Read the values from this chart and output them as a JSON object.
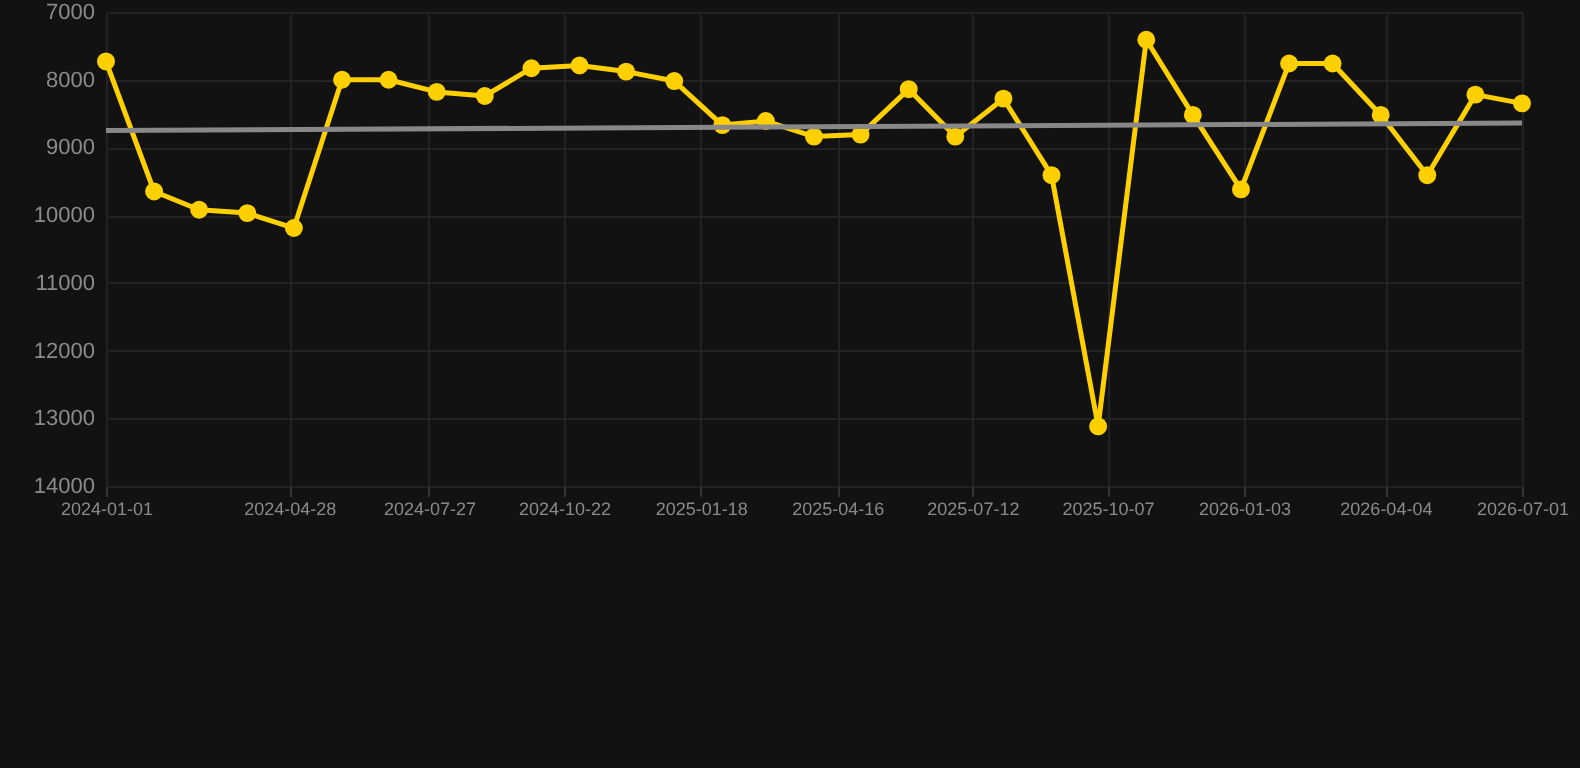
{
  "chart_data": {
    "type": "line",
    "marker": "circle",
    "grid": true,
    "x": [
      "2024-01-01",
      "2024-02-01",
      "2024-03-01",
      "2024-04-01",
      "2024-05-01",
      "2024-06-01",
      "2024-07-01",
      "2024-08-01",
      "2024-09-01",
      "2024-10-01",
      "2024-11-01",
      "2024-12-01",
      "2025-01-01",
      "2025-02-01",
      "2025-03-01",
      "2025-04-01",
      "2025-05-01",
      "2025-06-01",
      "2025-07-01",
      "2025-08-01",
      "2025-09-01",
      "2025-10-01",
      "2025-11-01",
      "2025-12-01",
      "2026-01-01",
      "2026-02-01",
      "2026-03-01",
      "2026-04-01",
      "2026-05-01",
      "2026-06-01",
      "2026-07-01"
    ],
    "series": [
      {
        "color": "#ffd000",
        "values": [
          7730,
          9650,
          9920,
          9970,
          10190,
          8000,
          8000,
          8180,
          8240,
          7830,
          7790,
          7880,
          8020,
          8670,
          8610,
          8840,
          8810,
          8140,
          8840,
          8280,
          9410,
          13120,
          7410,
          8520,
          9620,
          7760,
          7760,
          8520,
          9410,
          8220,
          8350
        ]
      },
      {
        "type": "line",
        "marker": "none",
        "color": "#888888",
        "x": [
          "2024-01-01",
          "2026-07-01"
        ],
        "values": [
          8750,
          8640
        ]
      }
    ],
    "xlim": [
      "2024-01-01",
      "2026-07-01"
    ],
    "xticks": [
      "2024-01-01",
      "2024-04-28",
      "2024-07-27",
      "2024-10-22",
      "2025-01-18",
      "2025-04-16",
      "2025-07-12",
      "2025-10-07",
      "2026-01-03",
      "2026-04-04",
      "2026-07-01"
    ],
    "ylim": [
      14000,
      7000
    ],
    "yticks": [
      7000,
      8000,
      9000,
      10000,
      11000,
      12000,
      13000,
      14000
    ]
  }
}
